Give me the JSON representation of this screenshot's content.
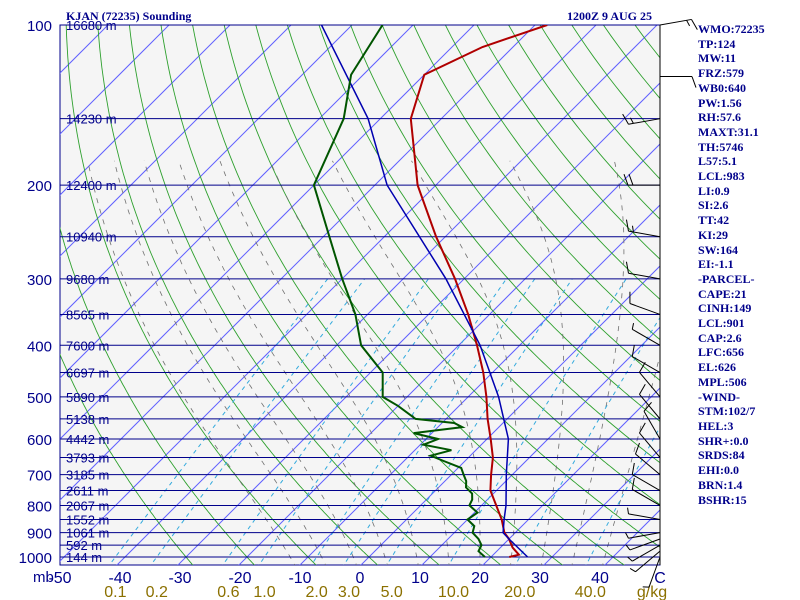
{
  "header": {
    "station": "KJAN (72235) Sounding",
    "valid_time": "1200Z  9 AUG 25"
  },
  "indices": [
    "WMO:72235",
    "TP:124",
    "MW:11",
    "FRZ:579",
    "WB0:640",
    "PW:1.56",
    "RH:57.6",
    "MAXT:31.1",
    "TH:5746",
    "L57:5.1",
    "LCL:983",
    "LI:0.9",
    "SI:2.6",
    "TT:42",
    "KI:29",
    "SW:164",
    "EI:-1.1",
    "-PARCEL-",
    "CAPE:21",
    "CINH:149",
    "LCL:901",
    "CAP:2.6",
    "LFC:656",
    "EL:626",
    "MPL:506",
    "-WIND-",
    "STM:102/7",
    "HEL:3",
    "SHR+:0.0",
    "SRDS:84",
    "EHI:0.0",
    "BRN:1.4",
    "BSHR:15"
  ],
  "colors": {
    "isobar": "#00008b",
    "isotherm": "#6060ff",
    "dry_adiabat": "#2ea02e",
    "moist_adiabat": "#707070",
    "mixing_ratio": "#33aadd",
    "temperature": "#b00000",
    "dewpoint": "#005500",
    "parcel": "#0000b0",
    "mixing_label": "#8b7000",
    "text": "#00008b",
    "wind": "#000000"
  },
  "chart_data": {
    "type": "skew-t",
    "pressure_axis_unit": "mb",
    "temperature_axis_unit": "C",
    "mixing_ratio_unit": "g/kg",
    "pressure_ticks": [
      1000,
      900,
      800,
      700,
      600,
      500,
      400,
      300,
      200,
      100
    ],
    "temperature_ticks": [
      "-50",
      "-40",
      "-30",
      "-20",
      "-10",
      "0",
      "10",
      "20",
      "30",
      "40",
      "C"
    ],
    "mixing_ratio_labels": [
      {
        "label": "0.1",
        "value": 0.1
      },
      {
        "label": "0.2",
        "value": 0.2
      },
      {
        "label": "0.6",
        "value": 0.6
      },
      {
        "label": "1.0",
        "value": 1.0
      },
      {
        "label": "2.0",
        "value": 2.0
      },
      {
        "label": "3.0",
        "value": 3.0
      },
      {
        "label": "5.0",
        "value": 5.0
      },
      {
        "label": "10.0",
        "value": 10.0
      },
      {
        "label": "20.0",
        "value": 20.0
      },
      {
        "label": "40.0",
        "value": 40.0
      }
    ],
    "mixing_ratio_unit_label": "g/kg",
    "height_labels": [
      {
        "p": 1000,
        "label": "144 m"
      },
      {
        "p": 950,
        "label": "592 m"
      },
      {
        "p": 900,
        "label": "1061 m"
      },
      {
        "p": 850,
        "label": "1552 m"
      },
      {
        "p": 800,
        "label": "2067 m"
      },
      {
        "p": 750,
        "label": "2611 m"
      },
      {
        "p": 700,
        "label": "3185 m"
      },
      {
        "p": 650,
        "label": "3793 m"
      },
      {
        "p": 600,
        "label": "4442 m"
      },
      {
        "p": 550,
        "label": "5138 m"
      },
      {
        "p": 500,
        "label": "5890 m"
      },
      {
        "p": 450,
        "label": "6697 m"
      },
      {
        "p": 400,
        "label": "7600 m"
      },
      {
        "p": 350,
        "label": "8565 m"
      },
      {
        "p": 300,
        "label": "9680 m"
      },
      {
        "p": 250,
        "label": "10940 m"
      },
      {
        "p": 200,
        "label": "12400 m"
      },
      {
        "p": 150,
        "label": "14230 m"
      },
      {
        "p": 100,
        "label": "16680 m"
      }
    ],
    "temperature_profile": [
      {
        "p": 1000,
        "t": 23.0
      },
      {
        "p": 990,
        "t": 24.2
      },
      {
        "p": 960,
        "t": 22.0
      },
      {
        "p": 925,
        "t": 20.0
      },
      {
        "p": 900,
        "t": 18.2
      },
      {
        "p": 850,
        "t": 15.6
      },
      {
        "p": 800,
        "t": 12.4
      },
      {
        "p": 750,
        "t": 9.0
      },
      {
        "p": 700,
        "t": 6.5
      },
      {
        "p": 650,
        "t": 4.0
      },
      {
        "p": 600,
        "t": 0.6
      },
      {
        "p": 550,
        "t": -3.2
      },
      {
        "p": 500,
        "t": -7.0
      },
      {
        "p": 450,
        "t": -11.5
      },
      {
        "p": 400,
        "t": -17.0
      },
      {
        "p": 350,
        "t": -23.5
      },
      {
        "p": 300,
        "t": -31.5
      },
      {
        "p": 250,
        "t": -41.5
      },
      {
        "p": 200,
        "t": -53.0
      },
      {
        "p": 150,
        "t": -65.0
      },
      {
        "p": 124,
        "t": -70.0
      },
      {
        "p": 110,
        "t": -65.0
      },
      {
        "p": 100,
        "t": -58.0
      }
    ],
    "dewpoint_profile": [
      {
        "p": 1000,
        "td": 19.0
      },
      {
        "p": 975,
        "td": 17.0
      },
      {
        "p": 950,
        "td": 16.5
      },
      {
        "p": 925,
        "td": 15.0
      },
      {
        "p": 900,
        "td": 13.0
      },
      {
        "p": 875,
        "td": 12.2
      },
      {
        "p": 850,
        "td": 10.0
      },
      {
        "p": 825,
        "td": 10.5
      },
      {
        "p": 800,
        "td": 8.0
      },
      {
        "p": 780,
        "td": 7.5
      },
      {
        "p": 760,
        "td": 6.5
      },
      {
        "p": 740,
        "td": 4.5
      },
      {
        "p": 720,
        "td": 3.5
      },
      {
        "p": 700,
        "td": 2.0
      },
      {
        "p": 680,
        "td": 0.5
      },
      {
        "p": 660,
        "td": -3.5
      },
      {
        "p": 645,
        "td": -6.5
      },
      {
        "p": 630,
        "td": -4.0
      },
      {
        "p": 615,
        "td": -9.5
      },
      {
        "p": 600,
        "td": -8.0
      },
      {
        "p": 585,
        "td": -13.0
      },
      {
        "p": 570,
        "td": -6.0
      },
      {
        "p": 560,
        "td": -8.0
      },
      {
        "p": 550,
        "td": -15.0
      },
      {
        "p": 520,
        "td": -20.0
      },
      {
        "p": 500,
        "td": -24.0
      },
      {
        "p": 450,
        "td": -28.0
      },
      {
        "p": 400,
        "td": -36.0
      },
      {
        "p": 350,
        "td": -42.0
      },
      {
        "p": 300,
        "td": -50.0
      },
      {
        "p": 250,
        "td": -59.0
      },
      {
        "p": 200,
        "td": -70.0
      },
      {
        "p": 150,
        "td": -76.0
      },
      {
        "p": 124,
        "td": -82.0
      },
      {
        "p": 100,
        "td": -85.0
      }
    ],
    "parcel_profile": [
      {
        "p": 1000,
        "t": 26.0
      },
      {
        "p": 925,
        "t": 20.0
      },
      {
        "p": 900,
        "t": 18.0
      },
      {
        "p": 850,
        "t": 16.0
      },
      {
        "p": 800,
        "t": 14.0
      },
      {
        "p": 700,
        "t": 9.0
      },
      {
        "p": 600,
        "t": 3.5
      },
      {
        "p": 500,
        "t": -5.0
      },
      {
        "p": 400,
        "t": -16.5
      },
      {
        "p": 300,
        "t": -33.0
      },
      {
        "p": 200,
        "t": -58.0
      },
      {
        "p": 150,
        "t": -72.0
      },
      {
        "p": 100,
        "t": -95.0
      }
    ],
    "wind_barbs": [
      {
        "p": 1000,
        "dir": 200,
        "spd": 5
      },
      {
        "p": 975,
        "dir": 230,
        "spd": 5
      },
      {
        "p": 950,
        "dir": 240,
        "spd": 5
      },
      {
        "p": 925,
        "dir": 250,
        "spd": 5
      },
      {
        "p": 900,
        "dir": 260,
        "spd": 5
      },
      {
        "p": 850,
        "dir": 280,
        "spd": 5
      },
      {
        "p": 800,
        "dir": 300,
        "spd": 10
      },
      {
        "p": 750,
        "dir": 300,
        "spd": 10
      },
      {
        "p": 700,
        "dir": 310,
        "spd": 10
      },
      {
        "p": 650,
        "dir": 320,
        "spd": 10
      },
      {
        "p": 600,
        "dir": 330,
        "spd": 10
      },
      {
        "p": 550,
        "dir": 320,
        "spd": 10
      },
      {
        "p": 500,
        "dir": 320,
        "spd": 10
      },
      {
        "p": 450,
        "dir": 300,
        "spd": 10
      },
      {
        "p": 400,
        "dir": 300,
        "spd": 5
      },
      {
        "p": 350,
        "dir": 290,
        "spd": 10
      },
      {
        "p": 300,
        "dir": 280,
        "spd": 10
      },
      {
        "p": 250,
        "dir": 280,
        "spd": 15
      },
      {
        "p": 200,
        "dir": 270,
        "spd": 20
      },
      {
        "p": 150,
        "dir": 260,
        "spd": 15
      },
      {
        "p": 125,
        "dir": 90,
        "spd": 10
      },
      {
        "p": 100,
        "dir": 80,
        "spd": 15
      }
    ]
  }
}
